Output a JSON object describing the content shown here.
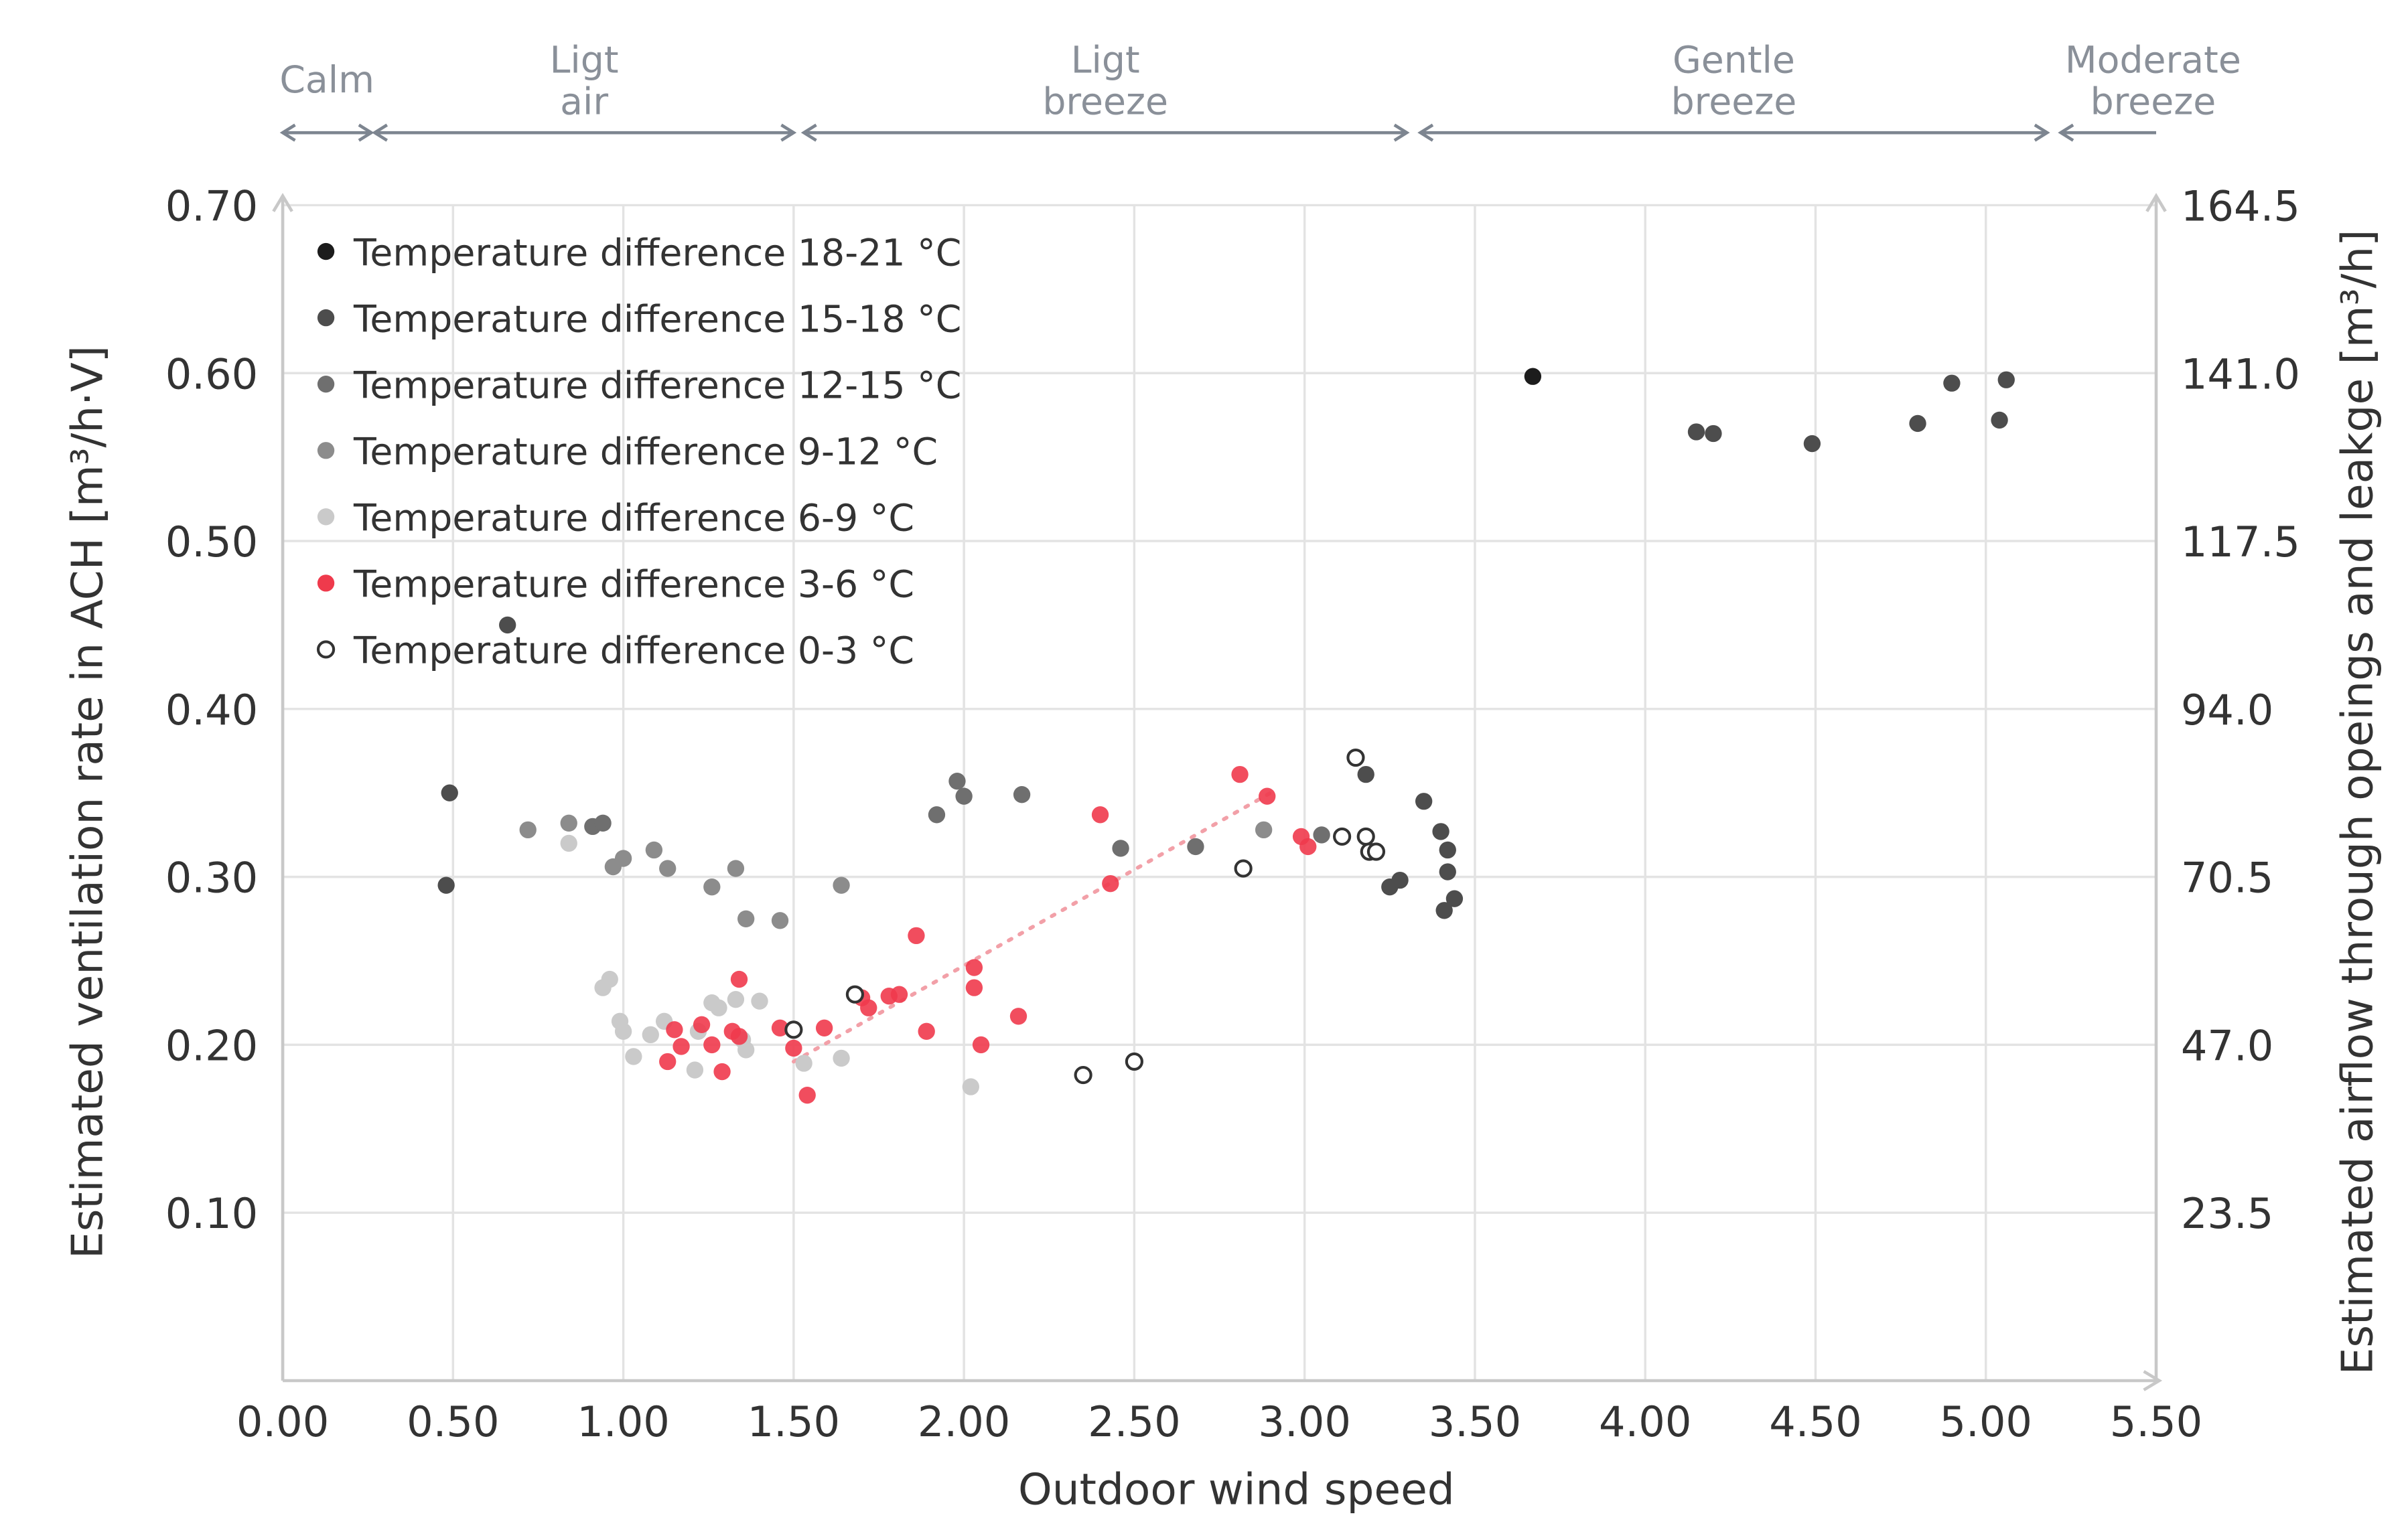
{
  "chart_data": {
    "type": "scatter",
    "xlabel": "Outdoor wind speed",
    "ylabel": "Estimated ventilation rate in ACH [m³/h·V]",
    "y2label": "Estimated airflow through opeings and leakge [m³/h]",
    "xlim": [
      0,
      5.5
    ],
    "ylim": [
      0,
      0.7
    ],
    "grid": true,
    "legend_position": "top-left",
    "x_ticks": [
      "0.00",
      "0.50",
      "1.00",
      "1.50",
      "2.00",
      "2.50",
      "3.00",
      "3.50",
      "4.00",
      "4.50",
      "5.00",
      "5.50"
    ],
    "y_ticks": [
      "0.10",
      "0.20",
      "0.30",
      "0.40",
      "0.50",
      "0.60",
      "0.70"
    ],
    "y2_ticks": [
      "23.5",
      "47.0",
      "70.5",
      "94.0",
      "117.5",
      "141.0",
      "164.5"
    ],
    "wind_classes": [
      {
        "line1": "Calm",
        "line2": "",
        "from": 0,
        "to": 0.26
      },
      {
        "line1": "Ligt",
        "line2": "air",
        "from": 0.27,
        "to": 1.5
      },
      {
        "line1": "Ligt",
        "line2": "breeze",
        "from": 1.53,
        "to": 3.3
      },
      {
        "line1": "Gentle",
        "line2": "breeze",
        "from": 3.34,
        "to": 5.18
      },
      {
        "line1": "Moderate",
        "line2": "breeze",
        "from": 5.22,
        "to": 5.5
      }
    ],
    "trendline": {
      "series": "Temperature difference 3-6 °C",
      "x": [
        1.5,
        2.9
      ],
      "y": [
        0.19,
        0.35
      ],
      "color": "#f2a0a8"
    },
    "series": [
      {
        "name": "Temperature difference 18-21 °C",
        "color": "#1c1c1c",
        "filled": true,
        "points": [
          [
            3.67,
            0.598
          ]
        ]
      },
      {
        "name": "Temperature difference 15-18 °C",
        "color": "#4d4d4d",
        "filled": true,
        "points": [
          [
            4.15,
            0.565
          ],
          [
            4.2,
            0.564
          ],
          [
            4.49,
            0.558
          ],
          [
            4.8,
            0.57
          ],
          [
            4.9,
            0.594
          ],
          [
            5.06,
            0.596
          ],
          [
            5.04,
            0.572
          ],
          [
            0.66,
            0.45
          ],
          [
            0.49,
            0.35
          ],
          [
            0.48,
            0.295
          ],
          [
            3.35,
            0.345
          ],
          [
            3.4,
            0.327
          ],
          [
            3.42,
            0.316
          ],
          [
            3.42,
            0.303
          ],
          [
            3.44,
            0.287
          ],
          [
            3.41,
            0.28
          ],
          [
            3.25,
            0.294
          ],
          [
            3.28,
            0.298
          ],
          [
            3.18,
            0.361
          ]
        ]
      },
      {
        "name": "Temperature difference 12-15 °C",
        "color": "#6f6f6f",
        "filled": true,
        "points": [
          [
            1.92,
            0.337
          ],
          [
            1.98,
            0.357
          ],
          [
            2.0,
            0.348
          ],
          [
            2.17,
            0.349
          ],
          [
            2.46,
            0.317
          ],
          [
            2.68,
            0.318
          ],
          [
            3.05,
            0.325
          ],
          [
            0.91,
            0.33
          ],
          [
            0.94,
            0.332
          ]
        ]
      },
      {
        "name": "Temperature difference 9-12 °C",
        "color": "#8c8c8c",
        "filled": true,
        "points": [
          [
            0.72,
            0.328
          ],
          [
            0.84,
            0.332
          ],
          [
            0.97,
            0.306
          ],
          [
            1.0,
            0.311
          ],
          [
            1.09,
            0.316
          ],
          [
            1.13,
            0.305
          ],
          [
            1.26,
            0.294
          ],
          [
            1.33,
            0.305
          ],
          [
            1.36,
            0.275
          ],
          [
            1.46,
            0.274
          ],
          [
            1.64,
            0.295
          ],
          [
            2.88,
            0.328
          ]
        ]
      },
      {
        "name": "Temperature difference 6-9 °C",
        "color": "#cacaca",
        "filled": true,
        "points": [
          [
            0.84,
            0.32
          ],
          [
            0.94,
            0.234
          ],
          [
            0.96,
            0.239
          ],
          [
            0.99,
            0.214
          ],
          [
            1.0,
            0.208
          ],
          [
            1.03,
            0.193
          ],
          [
            1.08,
            0.206
          ],
          [
            1.12,
            0.214
          ],
          [
            1.22,
            0.208
          ],
          [
            1.21,
            0.185
          ],
          [
            1.26,
            0.225
          ],
          [
            1.28,
            0.222
          ],
          [
            1.33,
            0.227
          ],
          [
            1.36,
            0.197
          ],
          [
            1.35,
            0.203
          ],
          [
            1.4,
            0.226
          ],
          [
            1.53,
            0.189
          ],
          [
            1.64,
            0.192
          ],
          [
            2.02,
            0.175
          ]
        ]
      },
      {
        "name": "Temperature difference 3-6 °C",
        "color": "#ef3a4c",
        "filled": true,
        "points": [
          [
            1.15,
            0.209
          ],
          [
            1.17,
            0.199
          ],
          [
            1.13,
            0.19
          ],
          [
            1.23,
            0.212
          ],
          [
            1.26,
            0.2
          ],
          [
            1.29,
            0.184
          ],
          [
            1.32,
            0.208
          ],
          [
            1.34,
            0.239
          ],
          [
            1.34,
            0.205
          ],
          [
            1.46,
            0.21
          ],
          [
            1.5,
            0.198
          ],
          [
            1.54,
            0.17
          ],
          [
            1.59,
            0.21
          ],
          [
            1.7,
            0.228
          ],
          [
            1.72,
            0.222
          ],
          [
            1.78,
            0.229
          ],
          [
            1.81,
            0.23
          ],
          [
            1.86,
            0.265
          ],
          [
            1.89,
            0.208
          ],
          [
            2.03,
            0.246
          ],
          [
            2.03,
            0.234
          ],
          [
            2.05,
            0.2
          ],
          [
            2.16,
            0.217
          ],
          [
            2.4,
            0.337
          ],
          [
            2.43,
            0.296
          ],
          [
            2.81,
            0.361
          ],
          [
            2.89,
            0.348
          ],
          [
            2.99,
            0.324
          ],
          [
            3.01,
            0.318
          ]
        ]
      },
      {
        "name": "Temperature difference 0-3 °C",
        "color": "#333333",
        "filled": false,
        "points": [
          [
            1.5,
            0.209
          ],
          [
            1.68,
            0.23
          ],
          [
            2.35,
            0.182
          ],
          [
            2.5,
            0.19
          ],
          [
            2.82,
            0.305
          ],
          [
            3.11,
            0.324
          ],
          [
            3.15,
            0.371
          ],
          [
            3.18,
            0.324
          ],
          [
            3.19,
            0.315
          ],
          [
            3.21,
            0.315
          ]
        ]
      }
    ]
  }
}
